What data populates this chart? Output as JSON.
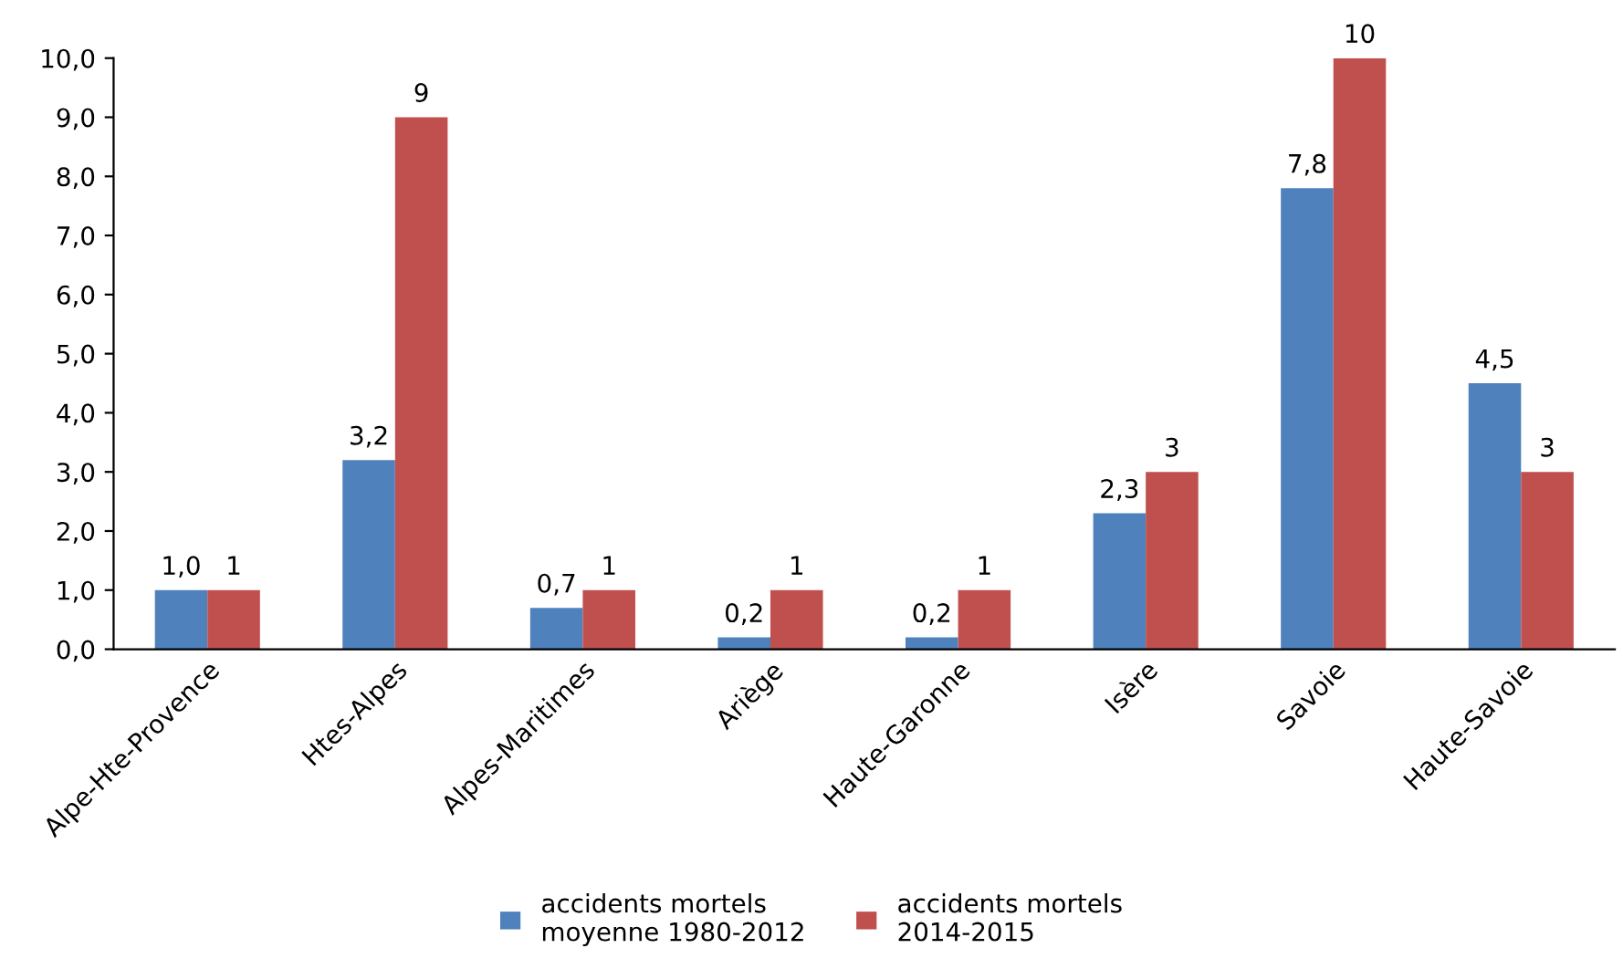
{
  "chart_data": {
    "type": "bar",
    "categories": [
      "Alpe-Hte-Provence",
      "Htes-Alpes",
      "Alpes-Maritimes",
      "Ariège",
      "Haute-Garonne",
      "Isère",
      "Savoie",
      "Haute-Savoie"
    ],
    "series": [
      {
        "name": "accidents mortels\nmoyenne 1980-2012",
        "color": "#4f81bd",
        "values": [
          1.0,
          3.2,
          0.7,
          0.2,
          0.2,
          2.3,
          7.8,
          4.5
        ],
        "value_labels": [
          "1,0",
          "3,2",
          "0,7",
          "0,2",
          "0,2",
          "2,3",
          "7,8",
          "4,5"
        ]
      },
      {
        "name": "accidents mortels\n2014-2015",
        "color": "#c0504d",
        "values": [
          1,
          9,
          1,
          1,
          1,
          3,
          10,
          3
        ],
        "value_labels": [
          "1",
          "9",
          "1",
          "1",
          "1",
          "3",
          "10",
          "3"
        ]
      }
    ],
    "ylim": [
      0,
      10
    ],
    "yticks": [
      {
        "value": 0,
        "label": "0,0"
      },
      {
        "value": 1,
        "label": "1,0"
      },
      {
        "value": 2,
        "label": "2,0"
      },
      {
        "value": 3,
        "label": "3,0"
      },
      {
        "value": 4,
        "label": "4,0"
      },
      {
        "value": 5,
        "label": "5,0"
      },
      {
        "value": 6,
        "label": "6,0"
      },
      {
        "value": 7,
        "label": "7,0"
      },
      {
        "value": 8,
        "label": "8,0"
      },
      {
        "value": 9,
        "label": "9,0"
      },
      {
        "value": 10,
        "label": "10,0"
      }
    ],
    "grid": false,
    "legend": "bottom"
  }
}
